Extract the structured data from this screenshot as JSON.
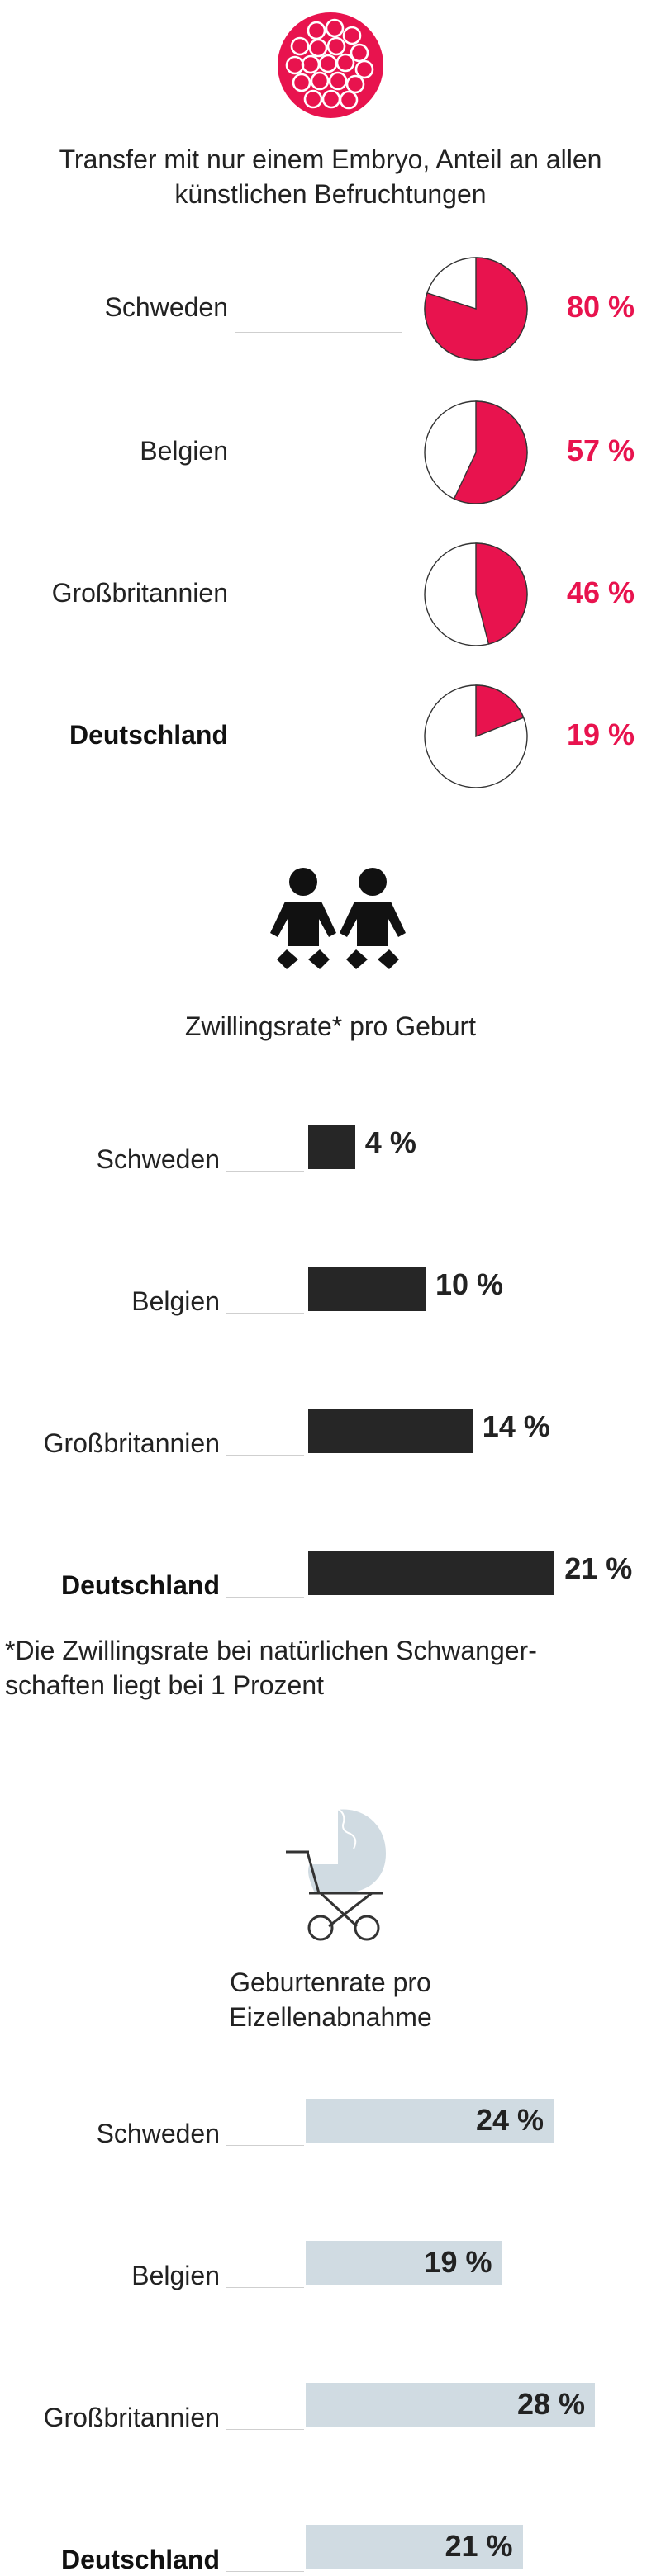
{
  "sections": {
    "embryo": {
      "icon": "embryo-cells-icon",
      "title_lines": [
        "Transfer mit nur einem Embryo, Anteil an allen",
        "künstlichen Befruchtungen"
      ]
    },
    "twins": {
      "icon": "twin-babies-icon",
      "title_lines": [
        "Zwillingsrate* pro Geburt"
      ],
      "footnote_lines": [
        "*Die Zwillingsrate bei natürlichen Schwanger-",
        "schaften liegt bei 1 Prozent"
      ]
    },
    "births": {
      "icon": "baby-stroller-icon",
      "title_lines": [
        "Geburtenrate pro",
        "Eizellenabnahme"
      ]
    }
  },
  "colors": {
    "accent": "#e8134e",
    "dark_bar": "#262626",
    "light_bar": "#d0dbe2",
    "text": "#222222"
  },
  "chart_data": [
    {
      "type": "pie",
      "title": "Transfer mit nur einem Embryo, Anteil an allen künstlichen Befruchtungen",
      "categories": [
        "Schweden",
        "Belgien",
        "Großbritannien",
        "Deutschland"
      ],
      "values": [
        80,
        57,
        46,
        19
      ],
      "labels": [
        "80 %",
        "57 %",
        "46 %",
        "19 %"
      ],
      "unit": "%",
      "highlight": "Deutschland"
    },
    {
      "type": "bar",
      "title": "Zwillingsrate* pro Geburt",
      "categories": [
        "Schweden",
        "Belgien",
        "Großbritannien",
        "Deutschland"
      ],
      "values": [
        4,
        10,
        14,
        21
      ],
      "labels": [
        "4 %",
        "10 %",
        "14 %",
        "21 %"
      ],
      "unit": "%",
      "highlight": "Deutschland"
    },
    {
      "type": "bar",
      "title": "Geburtenrate pro Eizellenabnahme",
      "categories": [
        "Schweden",
        "Belgien",
        "Großbritannien",
        "Deutschland"
      ],
      "values": [
        24,
        19,
        28,
        21
      ],
      "labels": [
        "24 %",
        "19 %",
        "28 %",
        "21 %"
      ],
      "unit": "%",
      "highlight": "Deutschland"
    }
  ]
}
